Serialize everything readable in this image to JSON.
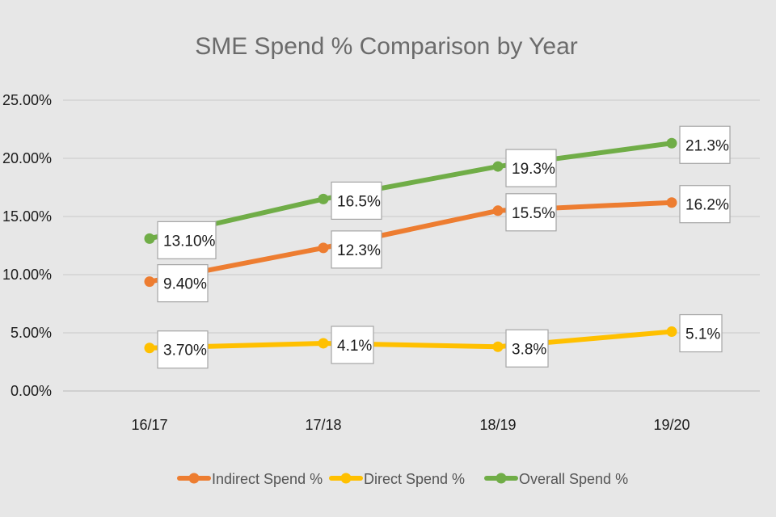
{
  "chart_data": {
    "type": "line",
    "title": "SME Spend % Comparison by Year",
    "xlabel": "",
    "ylabel": "",
    "categories": [
      "16/17",
      "17/18",
      "18/19",
      "19/20"
    ],
    "ylim": [
      0,
      25
    ],
    "y_ticks": [
      {
        "value": 0,
        "label": "0.00%"
      },
      {
        "value": 5,
        "label": "5.00%"
      },
      {
        "value": 10,
        "label": "10.00%"
      },
      {
        "value": 15,
        "label": "15.00%"
      },
      {
        "value": 20,
        "label": "20.00%"
      },
      {
        "value": 25,
        "label": "25.00%"
      }
    ],
    "grid": true,
    "legend_position": "bottom",
    "series": [
      {
        "name": "Indirect Spend %",
        "color": "#ed7d31",
        "values": [
          9.4,
          12.3,
          15.5,
          16.2
        ],
        "labels": [
          "9.40%",
          "12.3%",
          "15.5%",
          "16.2%"
        ]
      },
      {
        "name": "Direct Spend %",
        "color": "#ffc000",
        "values": [
          3.7,
          4.1,
          3.8,
          5.1
        ],
        "labels": [
          "3.70%",
          "4.1%",
          "3.8%",
          "5.1%"
        ]
      },
      {
        "name": "Overall Spend %",
        "color": "#70ad47",
        "values": [
          13.1,
          16.5,
          19.3,
          21.3
        ],
        "labels": [
          "13.10%",
          "16.5%",
          "19.3%",
          "21.3%"
        ]
      }
    ]
  }
}
